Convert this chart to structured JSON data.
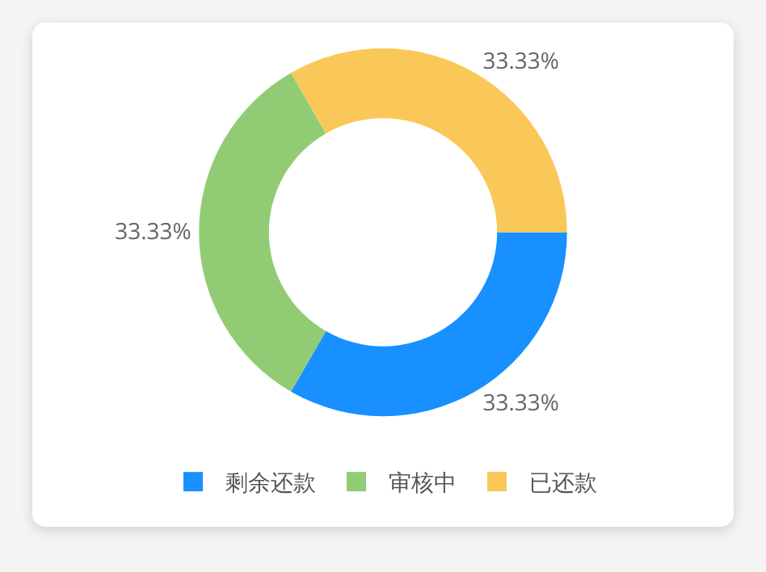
{
  "chart_data": {
    "type": "donut",
    "categories": [
      "剩余还款",
      "审核中",
      "已还款"
    ],
    "values": [
      33.33,
      33.33,
      33.33
    ],
    "colors": [
      "#1890ff",
      "#91cc75",
      "#fac858"
    ],
    "value_labels": [
      "33.33%",
      "33.33%",
      "33.33%"
    ],
    "legend": "bottom"
  }
}
